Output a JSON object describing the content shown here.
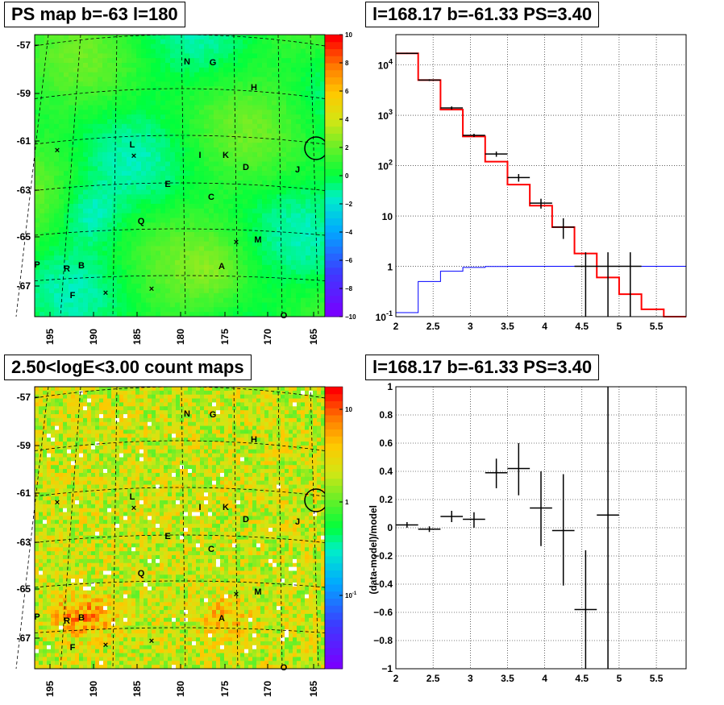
{
  "chart_data": [
    {
      "type": "heatmap",
      "title": "PS map b=-63 l=180",
      "x_ticks": [
        "195",
        "190",
        "185",
        "180",
        "175",
        "170",
        "165"
      ],
      "y_ticks": [
        "-57",
        "-59",
        "-61",
        "-63",
        "-65",
        "-67"
      ],
      "colorbar": {
        "min": -10,
        "max": 10,
        "ticks": [
          "10",
          "8",
          "6",
          "4",
          "2",
          "0",
          "−2",
          "−4",
          "−6",
          "−8",
          "−10"
        ]
      },
      "labels": [
        "N",
        "G",
        "H",
        "L",
        "I",
        "K",
        "D",
        "J",
        "E",
        "C",
        "Q",
        "M",
        "P",
        "R",
        "B",
        "A",
        "F",
        "O"
      ],
      "markers": [
        "×",
        "×",
        "×",
        "×",
        "×"
      ]
    },
    {
      "type": "line",
      "title": "l=168.17 b=-61.33 PS=3.40",
      "x_ticks": [
        "2",
        "2.5",
        "3",
        "3.5",
        "4",
        "4.5",
        "5",
        "5.5"
      ],
      "y_ticks": [
        "10^{-1}",
        "1",
        "10",
        "10^{2}",
        "10^{3}",
        "10^{4}"
      ],
      "xlim": [
        2,
        5.9
      ],
      "ylim": [
        0.1,
        40000
      ],
      "log_y": true,
      "grid": true,
      "series": [
        {
          "color": "#ff0000",
          "bins": [
            2.0,
            2.3,
            2.6,
            2.9,
            3.2,
            3.5,
            3.8,
            4.1,
            4.4,
            4.7,
            5.0,
            5.3,
            5.6,
            5.9
          ],
          "values": [
            17000,
            5000,
            1300,
            380,
            120,
            42,
            16,
            6,
            1.8,
            0.6,
            0.28,
            0.14,
            0.1
          ]
        },
        {
          "color": "#0000ff",
          "bins": [
            2.0,
            2.3,
            2.6,
            2.9,
            3.2,
            3.5,
            3.8,
            4.1,
            4.4,
            4.7,
            5.0,
            5.3,
            5.6,
            5.9
          ],
          "values": [
            0.12,
            0.5,
            0.8,
            0.95,
            0.99,
            1,
            1,
            1,
            1,
            1,
            1,
            1,
            1
          ]
        },
        {
          "color": "#000000",
          "type": "errorbar",
          "x": [
            2.15,
            2.45,
            2.75,
            3.05,
            3.35,
            3.65,
            3.95,
            4.25,
            4.55,
            4.85,
            5.15
          ],
          "y": [
            17000,
            5000,
            1400,
            400,
            170,
            58,
            18,
            6,
            1,
            1,
            1
          ],
          "ylo": [
            16500,
            4800,
            1300,
            370,
            150,
            48,
            14,
            3.5,
            0.1,
            0.1,
            0.1
          ],
          "yhi": [
            17500,
            5200,
            1500,
            430,
            190,
            68,
            22,
            9,
            1.9,
            1.9,
            1.9
          ]
        }
      ]
    },
    {
      "type": "heatmap",
      "title": "2.50<logE<3.00 count maps",
      "x_ticks": [
        "195",
        "190",
        "185",
        "180",
        "175",
        "170",
        "165"
      ],
      "y_ticks": [
        "-57",
        "-59",
        "-61",
        "-63",
        "-65",
        "-67"
      ],
      "colorbar": {
        "log": true,
        "ticks": [
          "10",
          "1",
          "10^{-1}"
        ]
      },
      "labels": [
        "N",
        "G",
        "H",
        "L",
        "I",
        "K",
        "D",
        "J",
        "E",
        "C",
        "Q",
        "M",
        "P",
        "R",
        "B",
        "A",
        "F",
        "O"
      ],
      "markers": [
        "×",
        "×",
        "×",
        "×",
        "×"
      ]
    },
    {
      "type": "scatter",
      "title": "l=168.17 b=-61.33 PS=3.40",
      "ylabel": "(data-model)/model",
      "x_ticks": [
        "2",
        "2.5",
        "3",
        "3.5",
        "4",
        "4.5",
        "5",
        "5.5"
      ],
      "y_ticks": [
        "−1",
        "−0.8",
        "−0.6",
        "−0.4",
        "−0.2",
        "0",
        "0.2",
        "0.4",
        "0.6",
        "0.8",
        "1"
      ],
      "xlim": [
        2,
        5.9
      ],
      "ylim": [
        -1,
        1
      ],
      "grid": true,
      "series": [
        {
          "color": "#000000",
          "x": [
            2.15,
            2.45,
            2.75,
            3.05,
            3.35,
            3.65,
            3.95,
            4.25,
            4.55,
            4.85
          ],
          "y": [
            0.02,
            -0.01,
            0.08,
            0.06,
            0.39,
            0.42,
            0.14,
            -0.02,
            -0.58,
            0.09
          ],
          "ylo": [
            0.0,
            -0.03,
            0.04,
            0.0,
            0.28,
            0.23,
            -0.13,
            -0.41,
            -1.0,
            -1.0
          ],
          "yhi": [
            0.04,
            0.01,
            0.12,
            0.11,
            0.49,
            0.6,
            0.4,
            0.38,
            -0.16,
            1.0
          ]
        }
      ]
    }
  ]
}
